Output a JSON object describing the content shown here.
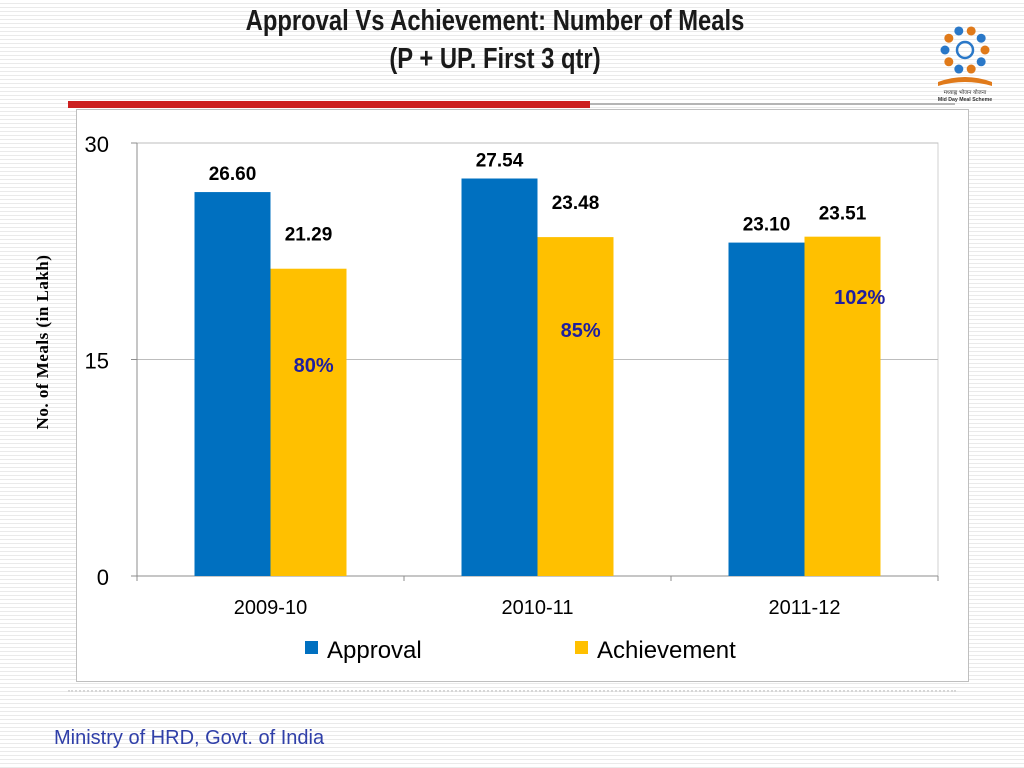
{
  "title": {
    "line1": "Approval Vs Achievement:  Number of Meals",
    "line2": "(P + UP. First 3 qtr)"
  },
  "logo": {
    "text_line1": "मध्याह्न भोजन योजना",
    "text_line2": "Mid Day Meal Scheme"
  },
  "footer": {
    "text": "Ministry of HRD, Govt. of India"
  },
  "colors": {
    "approval": "#0070c0",
    "achievement": "#ffc000",
    "percent_text": "#1f1fa0",
    "title_rule": "#cc1f1f"
  },
  "chart_data": {
    "type": "bar",
    "categories": [
      "2009-10",
      "2010-11",
      "2011-12"
    ],
    "series": [
      {
        "name": "Approval",
        "values": [
          26.6,
          27.54,
          23.1
        ],
        "labels": [
          "26.60",
          "27.54",
          "23.10"
        ]
      },
      {
        "name": "Achievement",
        "values": [
          21.29,
          23.48,
          23.51
        ],
        "labels": [
          "21.29",
          "23.48",
          "23.51"
        ]
      }
    ],
    "annotations": [
      "80%",
      "85%",
      "102%"
    ],
    "ylabel": "No. of Meals (in Lakh)",
    "ylim": [
      0,
      30
    ],
    "yticks": [
      "0",
      "15",
      "30"
    ],
    "grid": true,
    "legend": "bottom"
  }
}
